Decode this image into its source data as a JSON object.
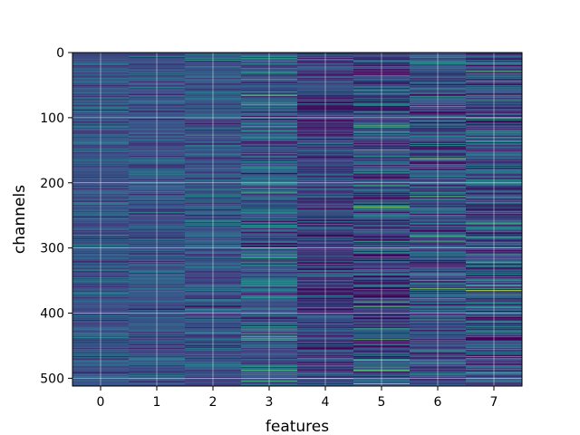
{
  "chart_data": {
    "type": "heatmap",
    "title": "",
    "xlabel": "features",
    "ylabel": "channels",
    "x_categories": [
      "0",
      "1",
      "2",
      "3",
      "4",
      "5",
      "6",
      "7"
    ],
    "y_range": [
      0,
      512
    ],
    "y_ticks": [
      0,
      100,
      200,
      300,
      400,
      500
    ],
    "y_inverted": true,
    "rows": 512,
    "colormap": "viridis",
    "value_range": [
      0,
      1
    ],
    "grid": true,
    "legend": "none",
    "column_profiles": [
      {
        "feature": "0",
        "mean": 0.27,
        "spread": 0.09
      },
      {
        "feature": "1",
        "mean": 0.27,
        "spread": 0.09
      },
      {
        "feature": "2",
        "mean": 0.27,
        "spread": 0.1
      },
      {
        "feature": "3",
        "mean": 0.29,
        "spread": 0.14
      },
      {
        "feature": "4",
        "mean": 0.2,
        "spread": 0.12
      },
      {
        "feature": "5",
        "mean": 0.23,
        "spread": 0.17
      },
      {
        "feature": "6",
        "mean": 0.25,
        "spread": 0.16
      },
      {
        "feature": "7",
        "mean": 0.24,
        "spread": 0.18
      }
    ],
    "highlights": [
      {
        "feature": "3",
        "channel": 40,
        "value": 0.65
      },
      {
        "feature": "3",
        "channel": 65,
        "value": 0.8
      },
      {
        "feature": "3",
        "channel": 300,
        "value": 0.6
      },
      {
        "feature": "4",
        "channel": 10,
        "value": 0.6
      },
      {
        "feature": "4",
        "channel": 500,
        "value": 0.7
      },
      {
        "feature": "5",
        "channel": 237,
        "value": 0.85
      },
      {
        "feature": "5",
        "channel": 440,
        "value": 0.7
      },
      {
        "feature": "5",
        "channel": 508,
        "value": 0.95
      },
      {
        "feature": "6",
        "channel": 163,
        "value": 0.7
      },
      {
        "feature": "6",
        "channel": 290,
        "value": 0.65
      },
      {
        "feature": "6",
        "channel": 362,
        "value": 0.8
      },
      {
        "feature": "6",
        "channel": 410,
        "value": 0.65
      },
      {
        "feature": "7",
        "channel": 65,
        "value": 0.65
      },
      {
        "feature": "7",
        "channel": 230,
        "value": 0.65
      },
      {
        "feature": "7",
        "channel": 262,
        "value": 0.65
      },
      {
        "feature": "7",
        "channel": 310,
        "value": 0.7
      },
      {
        "feature": "7",
        "channel": 365,
        "value": 0.95
      },
      {
        "feature": "7",
        "channel": 466,
        "value": 0.75
      }
    ]
  }
}
